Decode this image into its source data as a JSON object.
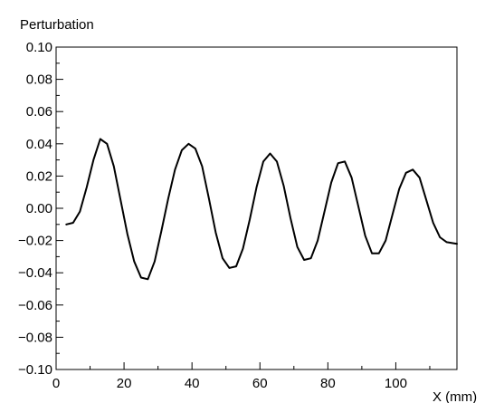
{
  "chart_data": {
    "type": "line",
    "ylabel": "Perturbation",
    "xlabel": "X (mm)",
    "xlim": [
      0,
      118
    ],
    "ylim": [
      -0.1,
      0.1
    ],
    "grid": false,
    "x_ticks": [
      0,
      20,
      40,
      60,
      80,
      100
    ],
    "x_tick_labels": [
      "0",
      "20",
      "40",
      "60",
      "80",
      "100"
    ],
    "y_ticks": [
      0.1,
      0.08,
      0.06,
      0.04,
      0.02,
      0.0,
      -0.02,
      -0.04,
      -0.06,
      -0.08,
      -0.1
    ],
    "y_tick_labels": [
      "0.10",
      "0.08",
      "0.06",
      "0.04",
      "0.02",
      "0.00",
      "−0.02",
      "−0.04",
      "−0.06",
      "−0.08",
      "−0.10"
    ],
    "series": [
      {
        "color": "#000000",
        "x": [
          3,
          5,
          7,
          9,
          11,
          13,
          15,
          17,
          19,
          21,
          23,
          25,
          27,
          29,
          31,
          33,
          35,
          37,
          39,
          41,
          43,
          45,
          47,
          49,
          51,
          53,
          55,
          57,
          59,
          61,
          63,
          65,
          67,
          69,
          71,
          73,
          75,
          77,
          79,
          81,
          83,
          85,
          87,
          89,
          91,
          93,
          95,
          97,
          99,
          101,
          103,
          105,
          107,
          109,
          111,
          113,
          115,
          118
        ],
        "y": [
          -0.01,
          -0.009,
          -0.002,
          0.013,
          0.03,
          0.043,
          0.04,
          0.026,
          0.005,
          -0.016,
          -0.033,
          -0.043,
          -0.044,
          -0.033,
          -0.014,
          0.006,
          0.024,
          0.036,
          0.04,
          0.037,
          0.026,
          0.006,
          -0.015,
          -0.031,
          -0.037,
          -0.036,
          -0.025,
          -0.007,
          0.013,
          0.029,
          0.034,
          0.029,
          0.014,
          -0.006,
          -0.024,
          -0.032,
          -0.031,
          -0.02,
          -0.002,
          0.016,
          0.028,
          0.029,
          0.019,
          0.001,
          -0.017,
          -0.028,
          -0.028,
          -0.02,
          -0.004,
          0.012,
          0.022,
          0.024,
          0.019,
          0.005,
          -0.009,
          -0.018,
          -0.021,
          -0.022
        ]
      }
    ]
  }
}
